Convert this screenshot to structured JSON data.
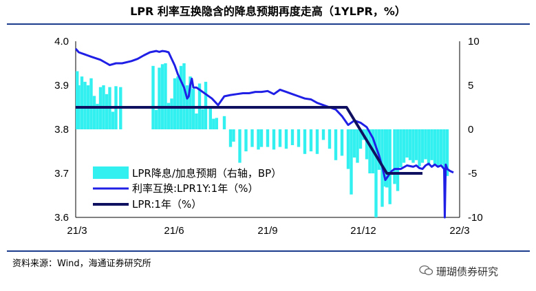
{
  "title": "LPR 利率互换隐含的降息预期再度走高（1YLPR，%）",
  "source": "资料来源：Wind，海通证券研究所",
  "watermark": "珊瑚债券研究",
  "colors": {
    "bars": "#33f0f0",
    "swap_line": "#1f1fe6",
    "lpr_line": "#101061",
    "rule": "#1a3a8c"
  },
  "chart_data": {
    "type": "bar+line",
    "x_ticks": [
      "21/3",
      "21/6",
      "21/9",
      "21/12",
      "22/3"
    ],
    "y_left": {
      "ticks": [
        "3.6",
        "3.7",
        "3.8",
        "3.9",
        "4.0"
      ],
      "ylim": [
        3.6,
        4.0
      ]
    },
    "y_right": {
      "ticks": [
        "-10",
        "-5",
        "0",
        "5",
        "10"
      ],
      "ylim": [
        -10,
        10
      ]
    },
    "legend": [
      "LPR降息/加息预期（右轴，BP）",
      "利率互换:LPR1Y:1年（%）",
      "LPR:1年（%）"
    ],
    "x_range": [
      0,
      12.4
    ],
    "bars": {
      "name": "LPR降息/加息预期（右轴，BP）",
      "axis": "right",
      "x": [
        0.05,
        0.1,
        0.2,
        0.3,
        0.4,
        0.5,
        0.6,
        0.7,
        0.8,
        0.9,
        1.0,
        1.1,
        1.2,
        1.3,
        1.45,
        2.5,
        2.6,
        2.7,
        2.8,
        2.9,
        3.0,
        3.1,
        3.2,
        3.3,
        3.4,
        3.5,
        3.6,
        3.7,
        3.8,
        3.9,
        4.0,
        4.1,
        4.2,
        4.35,
        4.45,
        4.55,
        4.8,
        5.0,
        5.1,
        5.3,
        5.5,
        5.7,
        5.9,
        6.0,
        6.2,
        6.4,
        6.6,
        6.8,
        7.0,
        7.2,
        7.4,
        7.6,
        7.8,
        8.0,
        8.2,
        8.4,
        8.6,
        8.8,
        8.9,
        9.0,
        9.1,
        9.2,
        9.3,
        9.4,
        9.5,
        9.6,
        9.7,
        9.8,
        9.9,
        10.0,
        10.05,
        10.15,
        10.3,
        10.4,
        10.5,
        10.6,
        10.7,
        10.8,
        10.9,
        11.0,
        11.1,
        11.2,
        11.3,
        11.4,
        11.5,
        11.6,
        11.7,
        11.8,
        11.9,
        12.0
      ],
      "values": [
        6.6,
        5.0,
        6.0,
        5.4,
        5.0,
        5.8,
        3.8,
        2.9,
        4.8,
        5.0,
        4.0,
        4.8,
        2.0,
        4.9,
        4.8,
        7.2,
        2.2,
        7.0,
        7.4,
        7.5,
        3.0,
        3.5,
        5.8,
        6.0,
        7.2,
        7.5,
        5.0,
        6.0,
        4.6,
        1.8,
        5.2,
        2.3,
        5.4,
        2.6,
        1.2,
        1.3,
        1.5,
        -2.0,
        -1.4,
        -3.8,
        -2.5,
        -2.0,
        -2.3,
        -2.0,
        -2.0,
        -2.3,
        -2.0,
        -2.2,
        -1.8,
        -2.0,
        -2.8,
        -2.5,
        -2.8,
        -1.2,
        -2.2,
        -3.5,
        -3.0,
        -4.5,
        -7.4,
        -3.2,
        -3.8,
        -2.2,
        -1.2,
        -3.4,
        -5.0,
        -5.0,
        -10.0,
        -4.6,
        -8.8,
        -6.5,
        -6.6,
        -8.5,
        -6.2,
        -7.0,
        -4.3,
        -3.8,
        -3.2,
        -3.5,
        -3.8,
        -3.5,
        -4.2,
        -3.8,
        -3.4,
        -4.1,
        -3.5,
        -4.0,
        -4.3,
        -4.0,
        -4.5,
        -5.3
      ]
    },
    "series": [
      {
        "name": "利率互换:LPR1Y:1年（%）",
        "axis": "left",
        "x": [
          0,
          0.1,
          0.3,
          0.5,
          0.8,
          1.0,
          1.1,
          1.3,
          1.5,
          1.8,
          2.0,
          2.2,
          2.4,
          2.6,
          2.7,
          2.8,
          2.9,
          3.0,
          3.1,
          3.2,
          3.3,
          3.4,
          3.5,
          3.6,
          3.65,
          3.7,
          3.75,
          3.8,
          3.9,
          4.0,
          4.2,
          4.4,
          4.6,
          4.8,
          5.0,
          5.2,
          5.4,
          5.6,
          5.8,
          6.0,
          6.2,
          6.4,
          6.6,
          6.8,
          7.0,
          7.2,
          7.4,
          7.6,
          7.8,
          8.0,
          8.2,
          8.4,
          8.6,
          8.8,
          9.0,
          9.2,
          9.4,
          9.6,
          9.7,
          9.8,
          9.9,
          10.0,
          10.1,
          10.2,
          10.3,
          10.5,
          10.7,
          10.9,
          11.0,
          11.1,
          11.2,
          11.3,
          11.4,
          11.5,
          11.6,
          11.7,
          11.8,
          11.9,
          11.92,
          11.95,
          12.0,
          12.1,
          12.2
        ],
        "values": [
          3.983,
          3.975,
          3.97,
          3.965,
          3.958,
          3.95,
          3.946,
          3.95,
          3.95,
          3.955,
          3.96,
          3.968,
          3.975,
          3.978,
          3.976,
          3.978,
          3.977,
          3.975,
          3.96,
          3.945,
          3.925,
          3.91,
          3.895,
          3.87,
          3.875,
          3.9,
          3.915,
          3.895,
          3.895,
          3.89,
          3.88,
          3.87,
          3.855,
          3.875,
          3.878,
          3.88,
          3.882,
          3.882,
          3.885,
          3.885,
          3.887,
          3.88,
          3.89,
          3.885,
          3.88,
          3.875,
          3.87,
          3.868,
          3.86,
          3.855,
          3.85,
          3.845,
          3.83,
          3.81,
          3.82,
          3.815,
          3.805,
          3.78,
          3.76,
          3.74,
          3.715,
          3.685,
          3.695,
          3.705,
          3.71,
          3.71,
          3.718,
          3.715,
          3.718,
          3.712,
          3.71,
          3.718,
          3.722,
          3.715,
          3.72,
          3.715,
          3.718,
          3.71,
          3.6,
          3.72,
          3.71,
          3.705,
          3.702
        ]
      },
      {
        "name": "LPR:1年（%）",
        "axis": "left",
        "x": [
          0,
          8.75,
          10.05,
          11.2
        ],
        "values": [
          3.85,
          3.85,
          3.7,
          3.7
        ]
      }
    ]
  }
}
